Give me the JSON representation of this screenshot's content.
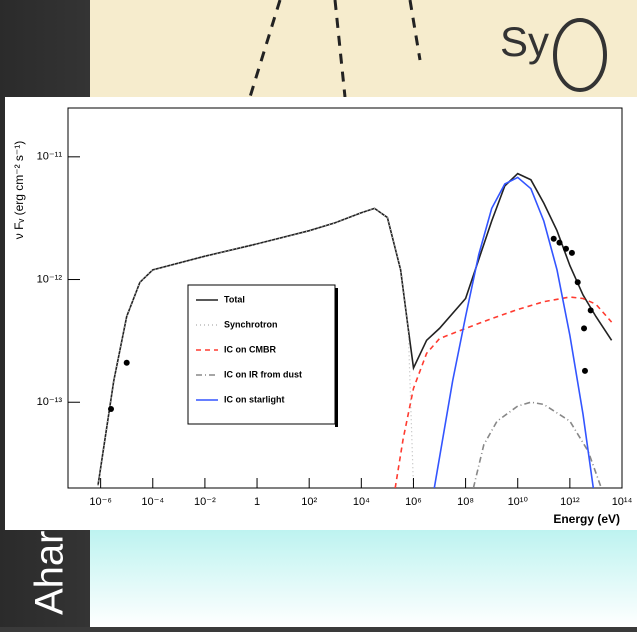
{
  "slide": {
    "top_image_text": "Sy",
    "side_text": "Ahar"
  },
  "chart_data": {
    "type": "line",
    "xlabel": "Energy  (eV)",
    "ylabel": "ν Fᵥ (erg cm⁻² s⁻¹)",
    "log_x": true,
    "log_y": true,
    "xlim": [
      5.6e-08,
      100000000000000.0
    ],
    "ylim": [
      2e-14,
      2.5e-11
    ],
    "xticks": [
      {
        "value": 1e-06,
        "label": "10⁻⁶"
      },
      {
        "value": 0.0001,
        "label": "10⁻⁴"
      },
      {
        "value": 0.01,
        "label": "10⁻²"
      },
      1,
      {
        "value": 100,
        "label": "10²"
      },
      {
        "value": 10000.0,
        "label": "10⁴"
      },
      {
        "value": 1000000.0,
        "label": "10⁶"
      },
      {
        "value": 100000000.0,
        "label": "10⁸"
      },
      {
        "value": 10000000000.0,
        "label": "10¹⁰"
      },
      {
        "value": 1000000000000.0,
        "label": "10¹²"
      },
      {
        "value": 100000000000000.0,
        "label": "10¹⁴"
      }
    ],
    "yticks": [
      {
        "value": 1e-13,
        "label": "10⁻¹³"
      },
      {
        "value": 1e-12,
        "label": "10⁻¹²"
      },
      {
        "value": 1e-11,
        "label": "10⁻¹¹"
      }
    ],
    "legend": "left",
    "series": [
      {
        "name": "Total",
        "color": "#222222",
        "style": "solid",
        "x": [
          7.9e-07,
          3.2e-06,
          1e-05,
          3.2e-05,
          0.0001,
          0.01,
          1,
          100,
          1000,
          10000.0,
          32000.0,
          100000.0,
          320000.0,
          630000.0,
          1000000.0,
          3200000.0,
          10000000.0,
          100000000.0,
          1000000000.0,
          3200000000.0,
          10000000000.0,
          32000000000.0,
          100000000000.0,
          320000000000.0,
          1000000000000.0,
          3200000000000.0,
          10000000000000.0,
          40000000000000.0
        ],
        "values": [
          2.1e-14,
          1.5e-13,
          5e-13,
          9.5e-13,
          1.2e-12,
          1.55e-12,
          1.95e-12,
          2.5e-12,
          2.9e-12,
          3.5e-12,
          3.8e-12,
          3.2e-12,
          1.2e-12,
          4e-13,
          1.9e-13,
          3.2e-13,
          4e-13,
          7e-13,
          3e-12,
          5.8e-12,
          7.3e-12,
          6.5e-12,
          4.2e-12,
          2.5e-12,
          1.3e-12,
          7.5e-13,
          5e-13,
          3.2e-13
        ]
      },
      {
        "name": "Synchrotron",
        "color": "#bbbbbb",
        "style": "dotted",
        "x": [
          7.9e-07,
          3.2e-06,
          1e-05,
          3.2e-05,
          0.0001,
          0.01,
          1,
          100,
          1000,
          10000.0,
          32000.0,
          100000.0,
          320000.0,
          630000.0,
          1000000.0
        ],
        "values": [
          2.1e-14,
          1.5e-13,
          5e-13,
          9.5e-13,
          1.2e-12,
          1.55e-12,
          1.95e-12,
          2.5e-12,
          2.9e-12,
          3.5e-12,
          3.8e-12,
          3.2e-12,
          1.2e-12,
          4e-13,
          2e-14
        ]
      },
      {
        "name": "IC on CMBR",
        "color": "#ff3b30",
        "style": "dashed",
        "x": [
          200000.0,
          400000.0,
          1000000.0,
          3200000.0,
          10000000.0,
          100000000.0,
          1000000000.0,
          10000000000.0,
          100000000000.0,
          1000000000000.0,
          3200000000000.0,
          10000000000000.0,
          40000000000000.0
        ],
        "values": [
          2e-14,
          5e-14,
          1.3e-13,
          2.5e-13,
          3.3e-13,
          4e-13,
          4.8e-13,
          5.7e-13,
          6.6e-13,
          7.2e-13,
          7e-13,
          6.3e-13,
          4.5e-13
        ]
      },
      {
        "name": "IC on IR from dust",
        "color": "#888888",
        "style": "dashdot",
        "x": [
          200000000.0,
          500000000.0,
          1600000000.0,
          10000000000.0,
          32000000000.0,
          100000000000.0,
          1000000000000.0,
          5000000000000.0,
          16000000000000.0
        ],
        "values": [
          2e-14,
          4.5e-14,
          7e-14,
          9.3e-14,
          1e-13,
          9.6e-14,
          7e-14,
          4e-14,
          2e-14
        ]
      },
      {
        "name": "IC on starlight",
        "color": "#3355ff",
        "style": "solid",
        "x": [
          6300000.0,
          32000000.0,
          100000000.0,
          320000000.0,
          1000000000.0,
          3200000000.0,
          10000000000.0,
          32000000000.0,
          100000000000.0,
          320000000000.0,
          1000000000000.0,
          3200000000000.0,
          7900000000000.0
        ],
        "values": [
          2e-14,
          1.5e-13,
          5e-13,
          1.6e-12,
          3.8e-12,
          6e-12,
          6.8e-12,
          5.5e-12,
          3e-12,
          1.2e-12,
          3.5e-13,
          8e-14,
          2e-14
        ]
      }
    ],
    "points": {
      "color": "#000000",
      "x": [
        2.5e-06,
        1e-05,
        240000000000.0,
        400000000000.0,
        710000000000.0,
        1200000000000.0,
        2000000000000.0,
        3500000000000.0,
        3800000000000.0,
        6300000000000.0
      ],
      "values": [
        8.8e-14,
        2.1e-13,
        2.15e-12,
        2e-12,
        1.78e-12,
        1.65e-12,
        9.5e-13,
        4e-13,
        1.8e-13,
        5.6e-13
      ]
    }
  }
}
